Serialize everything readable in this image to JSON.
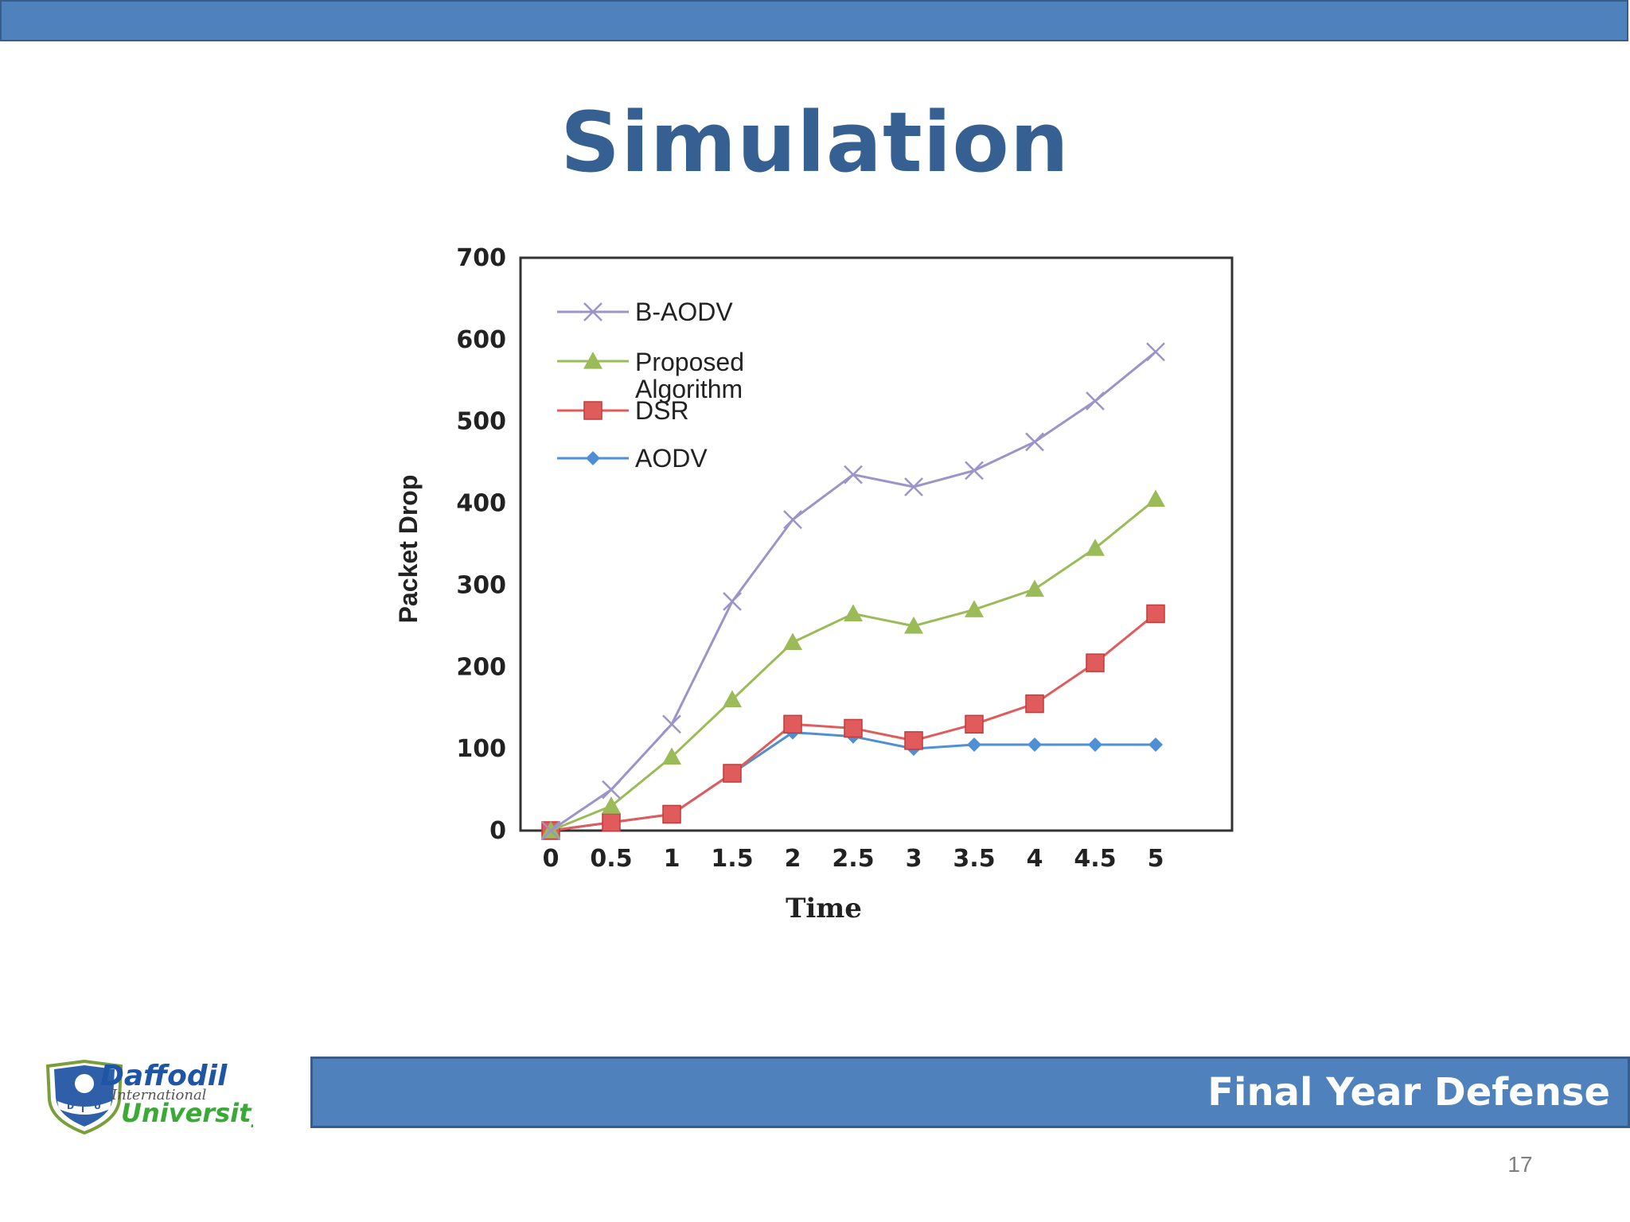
{
  "slide": {
    "title": "Simulation",
    "footer": "Final Year Defense",
    "page_number": "17",
    "logo_text": [
      "Daffodil",
      "International",
      "University"
    ]
  },
  "colors": {
    "bar_fill": "#4f81bd",
    "bar_border": "#385d8a",
    "title": "#376092"
  },
  "chart_data": {
    "type": "line",
    "title": "",
    "xlabel": "Time",
    "ylabel": "Packet Drop",
    "x": [
      0,
      0.5,
      1,
      1.5,
      2,
      2.5,
      3,
      3.5,
      4,
      4.5,
      5
    ],
    "x_tick_labels": [
      "0",
      "0.5",
      "1",
      "1.5",
      "2",
      "2.5",
      "3",
      "3.5",
      "4",
      "4.5",
      "5"
    ],
    "ylim": [
      0,
      700
    ],
    "y_ticks": [
      0,
      100,
      200,
      300,
      400,
      500,
      600,
      700
    ],
    "grid": false,
    "legend_position": "top-left",
    "series": [
      {
        "name": "B-AODV",
        "marker": "x",
        "color": "#9c93c9",
        "values": [
          0,
          50,
          130,
          280,
          380,
          435,
          420,
          440,
          475,
          525,
          585
        ]
      },
      {
        "name": "Proposed Algorithm",
        "marker": "triangle",
        "color": "#9bbb59",
        "values": [
          0,
          30,
          90,
          160,
          230,
          265,
          250,
          270,
          295,
          345,
          405
        ]
      },
      {
        "name": "DSR",
        "marker": "square",
        "color": "#e05c5c",
        "values": [
          0,
          10,
          20,
          70,
          130,
          125,
          110,
          130,
          155,
          205,
          265
        ]
      },
      {
        "name": "AODV",
        "marker": "diamond",
        "color": "#4f8fd3",
        "values": [
          0,
          10,
          20,
          70,
          120,
          115,
          100,
          105,
          105,
          105,
          105
        ]
      }
    ]
  }
}
